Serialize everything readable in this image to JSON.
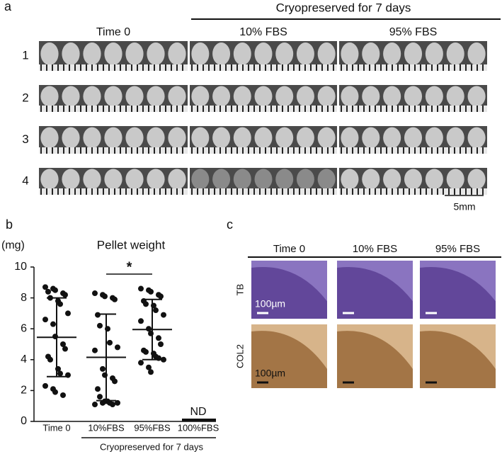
{
  "panel_a": {
    "label": "a",
    "group_header": "Cryopreserved for 7 days",
    "columns": [
      "Time 0",
      "10% FBS",
      "95% FBS"
    ],
    "rows": [
      "1",
      "2",
      "3",
      "4"
    ],
    "scale_bar": "5mm"
  },
  "chart_data": {
    "type": "strip",
    "panel_label": "b",
    "title": "Pellet weight",
    "y_unit": "(mg)",
    "categories": [
      "Time 0",
      "10%FBS",
      "95%FBS",
      "100%FBS"
    ],
    "values": [
      [
        8.7,
        8.6,
        8.5,
        8.3,
        8.2,
        8.4,
        8.0,
        7.8,
        7.6,
        7.0,
        6.6,
        6.3,
        5.5,
        5.0,
        4.7,
        4.2,
        4.0,
        3.4,
        3.1,
        3.0,
        2.3,
        2.1,
        1.9,
        1.7
      ],
      [
        8.3,
        8.2,
        8.1,
        8.0,
        7.9,
        6.9,
        6.2,
        6.0,
        5.1,
        4.8,
        4.6,
        3.4,
        3.0,
        2.8,
        2.6,
        2.1,
        1.6,
        1.3,
        1.2,
        1.2,
        1.1,
        1.2,
        1.3,
        1.1
      ],
      [
        8.6,
        8.5,
        8.4,
        8.2,
        8.1,
        7.8,
        7.6,
        7.5,
        7.2,
        6.9,
        6.5,
        6.0,
        5.7,
        5.4,
        5.0,
        4.6,
        4.5,
        4.4,
        4.2,
        4.0,
        3.8,
        3.5,
        3.2,
        4.1
      ],
      null
    ],
    "means": [
      5.45,
      4.15,
      5.95,
      null
    ],
    "sds": [
      2.55,
      2.8,
      1.95,
      null
    ],
    "ylim": [
      0,
      10
    ],
    "yticks": [
      0,
      2,
      4,
      6,
      8,
      10
    ],
    "significance": "*",
    "not_detected": "ND",
    "group_label": "Cryopreserved for 7 days"
  },
  "panel_c": {
    "label": "c",
    "columns": [
      "Time 0",
      "10% FBS",
      "95% FBS"
    ],
    "rows": [
      "TB",
      "COL2"
    ],
    "scale_labels": [
      "100µm",
      "100µm"
    ]
  }
}
